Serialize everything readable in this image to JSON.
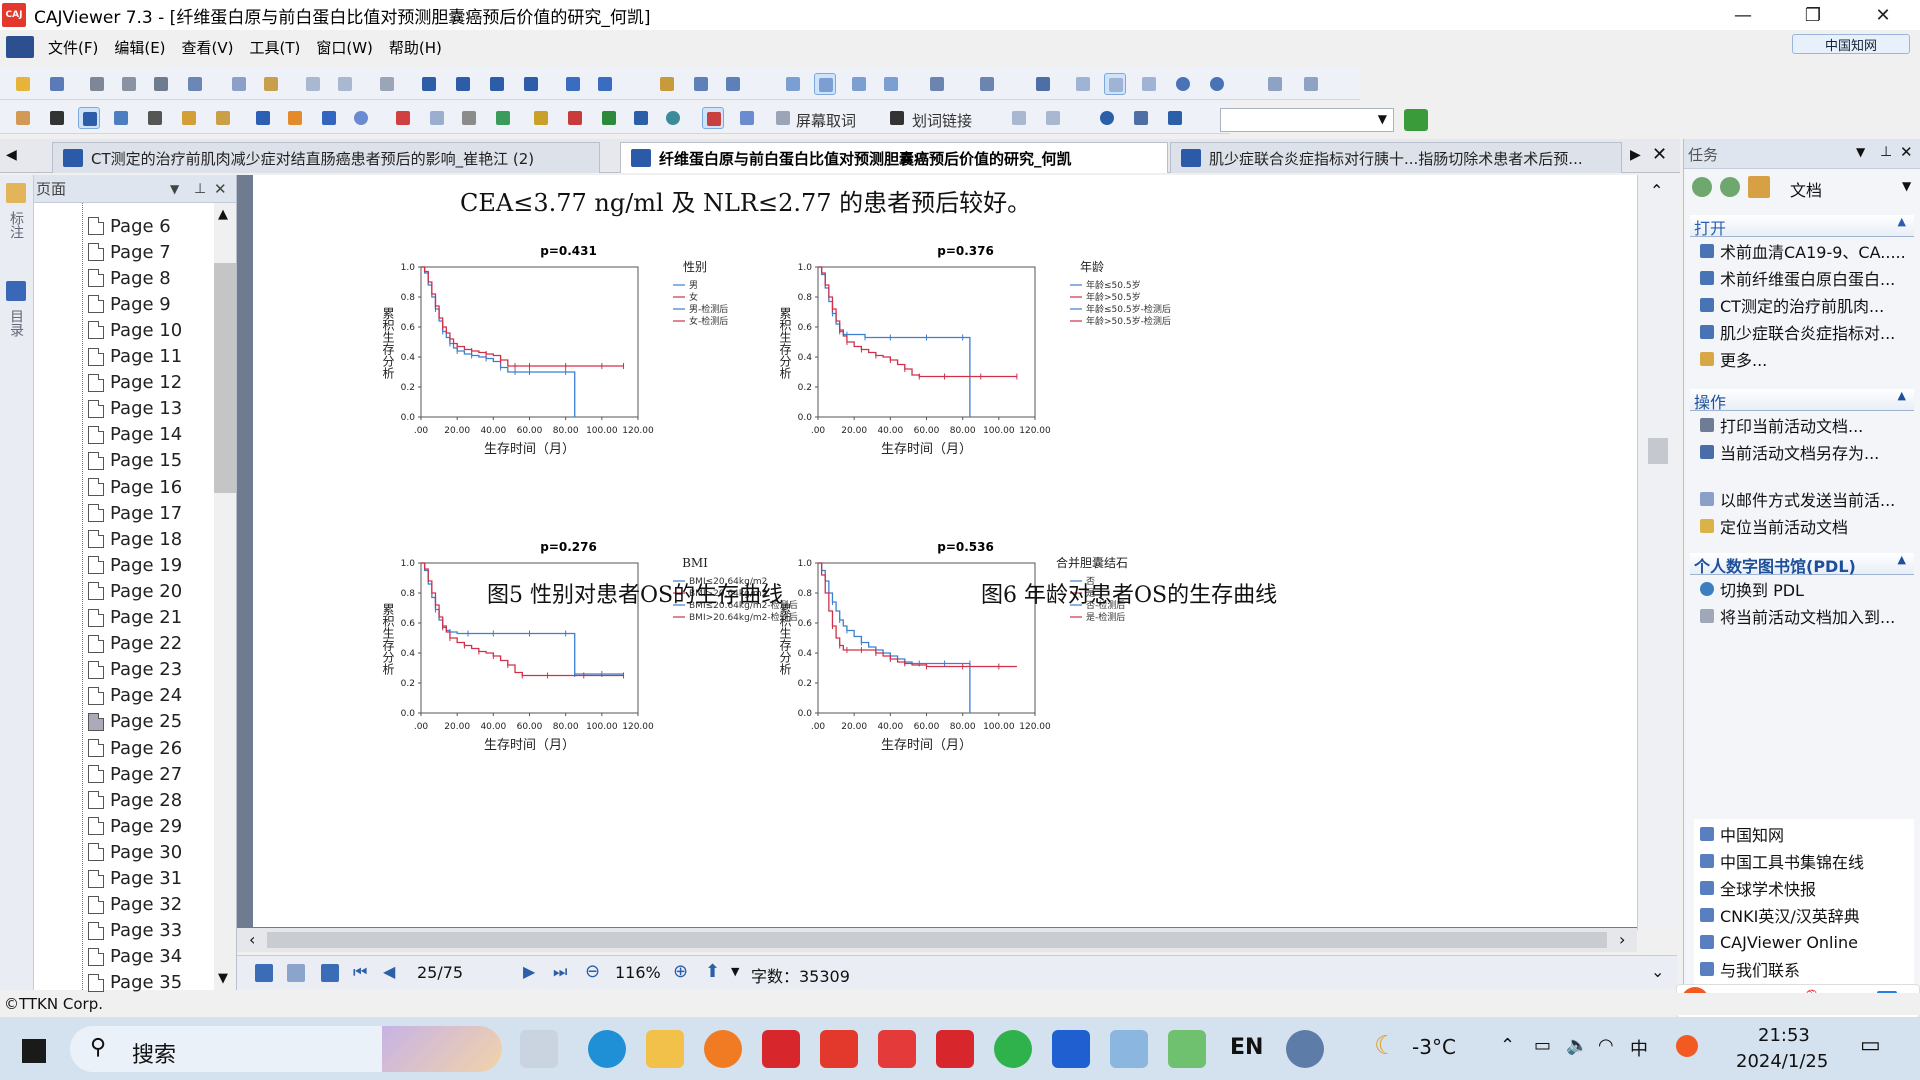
{
  "window": {
    "app_logo": "CAJ",
    "title": "CAJViewer 7.3 - [纤维蛋白原与前白蛋白比值对预测胆囊癌预后价值的研究_何凯]",
    "cnki_badge": "中国知网"
  },
  "menu": [
    "文件(F)",
    "编辑(E)",
    "查看(V)",
    "工具(T)",
    "窗口(W)",
    "帮助(H)"
  ],
  "toolbar": {
    "screen_capture": "屏幕取词",
    "word_link": "划词链接"
  },
  "tabs": [
    {
      "label": "CT测定的治疗前肌肉减少症对结直肠癌患者预后的影响_崔艳江 (2)",
      "active": false
    },
    {
      "label": "纤维蛋白原与前白蛋白比值对预测胆囊癌预后价值的研究_何凯",
      "active": true
    },
    {
      "label": "肌少症联合炎症指标对行胰十...指肠切除术患者术后预...",
      "active": false
    }
  ],
  "side_strip": {
    "annot": "标注",
    "toc": "目录"
  },
  "page_panel": {
    "title": "页面",
    "pages": [
      "Page 6",
      "Page 7",
      "Page 8",
      "Page 9",
      "Page 10",
      "Page 11",
      "Page 12",
      "Page 13",
      "Page 14",
      "Page 15",
      "Page 16",
      "Page 17",
      "Page 18",
      "Page 19",
      "Page 20",
      "Page 21",
      "Page 22",
      "Page 23",
      "Page 24",
      "Page 25",
      "Page 26",
      "Page 27",
      "Page 28",
      "Page 29",
      "Page 30",
      "Page 31",
      "Page 32",
      "Page 33",
      "Page 34",
      "Page 35"
    ],
    "current": "Page 25"
  },
  "document": {
    "top_line": "CEA≤3.77 ng/ml 及 NLR≤2.77 的患者预后较好。",
    "caption5": "图5  性别对患者OS的生存曲线",
    "caption6": "图6  年龄对患者OS的生存曲线"
  },
  "chart_data": [
    {
      "type": "line",
      "title": "p=0.431",
      "ylabel": "累积生存分析",
      "xlabel": "生存时间（月）",
      "x_ticks": [
        ".00",
        "20.00",
        "40.00",
        "60.00",
        "80.00",
        "100.00",
        "120.00"
      ],
      "y_ticks": [
        "0.0",
        "0.2",
        "0.4",
        "0.6",
        "0.8",
        "1.0"
      ],
      "xlim": [
        0,
        120
      ],
      "ylim": [
        0,
        1
      ],
      "legend_title": "性别",
      "legend": [
        "男",
        "女",
        "男-检测后",
        "女-检测后"
      ],
      "series": [
        {
          "name": "男",
          "color": "#3b7fd0",
          "x": [
            0,
            2,
            4,
            6,
            8,
            10,
            12,
            14,
            16,
            18,
            20,
            24,
            28,
            32,
            36,
            40,
            44,
            48,
            52,
            56,
            60,
            70,
            80,
            85,
            85
          ],
          "y": [
            1,
            0.96,
            0.88,
            0.8,
            0.72,
            0.64,
            0.57,
            0.53,
            0.49,
            0.46,
            0.44,
            0.42,
            0.41,
            0.4,
            0.39,
            0.37,
            0.33,
            0.3,
            0.3,
            0.3,
            0.3,
            0.3,
            0.3,
            0.3,
            0.0
          ]
        },
        {
          "name": "女",
          "color": "#d0304a",
          "x": [
            0,
            2,
            4,
            6,
            8,
            10,
            12,
            14,
            16,
            18,
            20,
            24,
            28,
            32,
            36,
            40,
            44,
            48,
            52,
            56,
            60,
            70,
            80,
            90,
            100,
            110,
            112
          ],
          "y": [
            1,
            0.97,
            0.9,
            0.82,
            0.74,
            0.66,
            0.6,
            0.56,
            0.52,
            0.49,
            0.47,
            0.45,
            0.44,
            0.43,
            0.42,
            0.41,
            0.38,
            0.34,
            0.34,
            0.34,
            0.34,
            0.34,
            0.34,
            0.34,
            0.34,
            0.34,
            0.34
          ]
        }
      ]
    },
    {
      "type": "line",
      "title": "p=0.376",
      "ylabel": "累积生存分析",
      "xlabel": "生存时间（月）",
      "x_ticks": [
        ".00",
        "20.00",
        "40.00",
        "60.00",
        "80.00",
        "100.00",
        "120.00"
      ],
      "y_ticks": [
        "0.0",
        "0.2",
        "0.4",
        "0.6",
        "0.8",
        "1.0"
      ],
      "xlim": [
        0,
        120
      ],
      "ylim": [
        0,
        1
      ],
      "legend_title": "年龄",
      "legend": [
        "年龄≤50.5岁",
        "年龄>50.5岁",
        "年龄≤50.5岁-检测后",
        "年龄>50.5岁-检测后"
      ],
      "series": [
        {
          "name": "年龄≤50.5岁",
          "color": "#3b7fd0",
          "x": [
            0,
            2,
            4,
            6,
            8,
            10,
            12,
            14,
            16,
            20,
            26,
            30,
            40,
            50,
            60,
            70,
            80,
            84,
            84
          ],
          "y": [
            1,
            0.95,
            0.86,
            0.77,
            0.69,
            0.62,
            0.57,
            0.55,
            0.55,
            0.55,
            0.53,
            0.53,
            0.53,
            0.53,
            0.53,
            0.53,
            0.53,
            0.53,
            0.0
          ]
        },
        {
          "name": "年龄>50.5岁",
          "color": "#d0304a",
          "x": [
            0,
            2,
            4,
            6,
            8,
            10,
            12,
            14,
            16,
            20,
            24,
            28,
            32,
            36,
            40,
            44,
            48,
            52,
            56,
            60,
            70,
            80,
            90,
            100,
            110
          ],
          "y": [
            1,
            0.96,
            0.88,
            0.8,
            0.72,
            0.64,
            0.58,
            0.54,
            0.5,
            0.47,
            0.45,
            0.43,
            0.41,
            0.4,
            0.38,
            0.35,
            0.32,
            0.28,
            0.27,
            0.27,
            0.27,
            0.27,
            0.27,
            0.27,
            0.27
          ]
        }
      ]
    },
    {
      "type": "line",
      "title": "p=0.276",
      "ylabel": "累积生存分析",
      "xlabel": "生存时间（月）",
      "x_ticks": [
        ".00",
        "20.00",
        "40.00",
        "60.00",
        "80.00",
        "100.00",
        "120.00"
      ],
      "y_ticks": [
        "0.0",
        "0.2",
        "0.4",
        "0.6",
        "0.8",
        "1.0"
      ],
      "xlim": [
        0,
        120
      ],
      "ylim": [
        0,
        1
      ],
      "legend_title": "BMI",
      "legend": [
        "BMI≤20.64kg/m2",
        "BMI>20.64kg/m2",
        "BMI≤20.64kg/m2-检测后",
        "BMI>20.64kg/m2-检测后"
      ],
      "series": [
        {
          "name": "BMI≤20.64kg/m2",
          "color": "#3b7fd0",
          "x": [
            0,
            2,
            4,
            6,
            8,
            10,
            12,
            14,
            16,
            20,
            26,
            30,
            40,
            50,
            60,
            70,
            80,
            85,
            85,
            90,
            100,
            112
          ],
          "y": [
            1,
            0.95,
            0.86,
            0.77,
            0.69,
            0.62,
            0.57,
            0.55,
            0.54,
            0.53,
            0.53,
            0.53,
            0.53,
            0.53,
            0.53,
            0.53,
            0.53,
            0.53,
            0.26,
            0.26,
            0.26,
            0.26
          ]
        },
        {
          "name": "BMI>20.64kg/m2",
          "color": "#d0304a",
          "x": [
            0,
            2,
            4,
            6,
            8,
            10,
            12,
            14,
            16,
            20,
            24,
            28,
            32,
            36,
            40,
            44,
            48,
            52,
            56,
            60,
            70,
            80,
            90,
            100,
            112
          ],
          "y": [
            1,
            0.96,
            0.88,
            0.8,
            0.72,
            0.64,
            0.58,
            0.54,
            0.5,
            0.47,
            0.45,
            0.43,
            0.41,
            0.4,
            0.38,
            0.35,
            0.32,
            0.27,
            0.25,
            0.25,
            0.25,
            0.25,
            0.25,
            0.25,
            0.25
          ]
        }
      ]
    },
    {
      "type": "line",
      "title": "p=0.536",
      "ylabel": "累积生存分析",
      "xlabel": "生存时间（月）",
      "x_ticks": [
        ".00",
        "20.00",
        "40.00",
        "60.00",
        "80.00",
        "100.00",
        "120.00"
      ],
      "y_ticks": [
        "0.0",
        "0.2",
        "0.4",
        "0.6",
        "0.8",
        "1.0"
      ],
      "xlim": [
        0,
        120
      ],
      "ylim": [
        0,
        1
      ],
      "legend_title": "合并胆囊结石",
      "legend": [
        "否",
        "是",
        "否-检测后",
        "是-检测后"
      ],
      "series": [
        {
          "name": "否",
          "color": "#3b7fd0",
          "x": [
            0,
            2,
            4,
            6,
            8,
            10,
            12,
            14,
            16,
            20,
            24,
            28,
            32,
            36,
            40,
            44,
            48,
            52,
            56,
            60,
            70,
            80,
            84,
            84
          ],
          "y": [
            1,
            0.95,
            0.88,
            0.8,
            0.74,
            0.68,
            0.62,
            0.58,
            0.55,
            0.51,
            0.47,
            0.44,
            0.42,
            0.4,
            0.38,
            0.36,
            0.34,
            0.33,
            0.33,
            0.33,
            0.33,
            0.33,
            0.33,
            0.0
          ]
        },
        {
          "name": "是",
          "color": "#d0304a",
          "x": [
            0,
            2,
            4,
            6,
            8,
            10,
            12,
            14,
            16,
            20,
            24,
            28,
            32,
            36,
            40,
            44,
            48,
            52,
            60,
            70,
            80,
            90,
            100,
            110
          ],
          "y": [
            1,
            0.92,
            0.8,
            0.68,
            0.58,
            0.5,
            0.45,
            0.42,
            0.42,
            0.42,
            0.42,
            0.42,
            0.4,
            0.38,
            0.36,
            0.34,
            0.33,
            0.32,
            0.31,
            0.31,
            0.31,
            0.31,
            0.31,
            0.31
          ]
        }
      ]
    }
  ],
  "status": {
    "page_indicator": "25/75",
    "zoom": "116%",
    "word_count": "字数：35309"
  },
  "task_panel": {
    "title": "任务",
    "nav_label": "文档",
    "open_header": "打开",
    "open_items": [
      "术前血清CA19-9、CA.....",
      "术前纤维蛋白原白蛋白...",
      "CT测定的治疗前肌肉...",
      "肌少症联合炎症指标对...",
      "更多..."
    ],
    "ops_header": "操作",
    "ops_items": [
      "打印当前活动文档...",
      "当前活动文档另存为...",
      "以邮件方式发送当前活...",
      "定位当前活动文档"
    ],
    "pdl_header": "个人数字图书馆(PDL)",
    "pdl_items": [
      "切换到 PDL",
      "将当前活动文档加入到..."
    ],
    "links": [
      "中国知网",
      "中国工具书集锦在线",
      "全球学术快报",
      "CNKI英汉/汉英辞典",
      "CAJViewer Online",
      "与我们联系"
    ]
  },
  "footer": {
    "copyright": "©TTKN Corp."
  },
  "taskbar": {
    "search": "搜索",
    "weather": "-3°C",
    "lang": "EN",
    "ime": "中",
    "tray_lang": "中",
    "time": "21:53",
    "date": "2024/1/25"
  }
}
